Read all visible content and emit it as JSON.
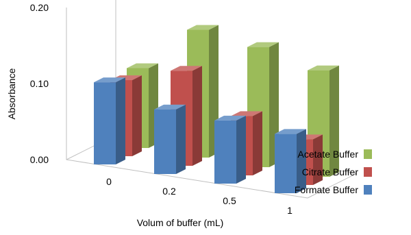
{
  "chart_data": {
    "type": "bar",
    "subtype": "3d-column",
    "categories": [
      "0",
      "0.2",
      "0.5",
      "1"
    ],
    "series": [
      {
        "name": "Formate Buffer",
        "values": [
          0.108,
          0.085,
          0.083,
          0.078
        ],
        "color": "#4f81bd"
      },
      {
        "name": "Citrate Buffer",
        "values": [
          0.1,
          0.125,
          0.078,
          0.06
        ],
        "color": "#c0504d"
      },
      {
        "name": "Acetate Buffer",
        "values": [
          0.105,
          0.168,
          0.158,
          0.14
        ],
        "color": "#9bbb59"
      }
    ],
    "y_ticks": [
      "0.00",
      "0.10",
      "0.20"
    ],
    "ylim": [
      0,
      0.2
    ],
    "xlabel": "Volum of buffer (mL)",
    "ylabel": "Absorbance",
    "legend": {
      "position": "right",
      "entries": [
        {
          "label": "Acetate Buffer",
          "color": "#9bbb59"
        },
        {
          "label": "Citrate Buffer",
          "color": "#c0504d"
        },
        {
          "label": "Formate Buffer",
          "color": "#4f81bd"
        }
      ]
    }
  }
}
